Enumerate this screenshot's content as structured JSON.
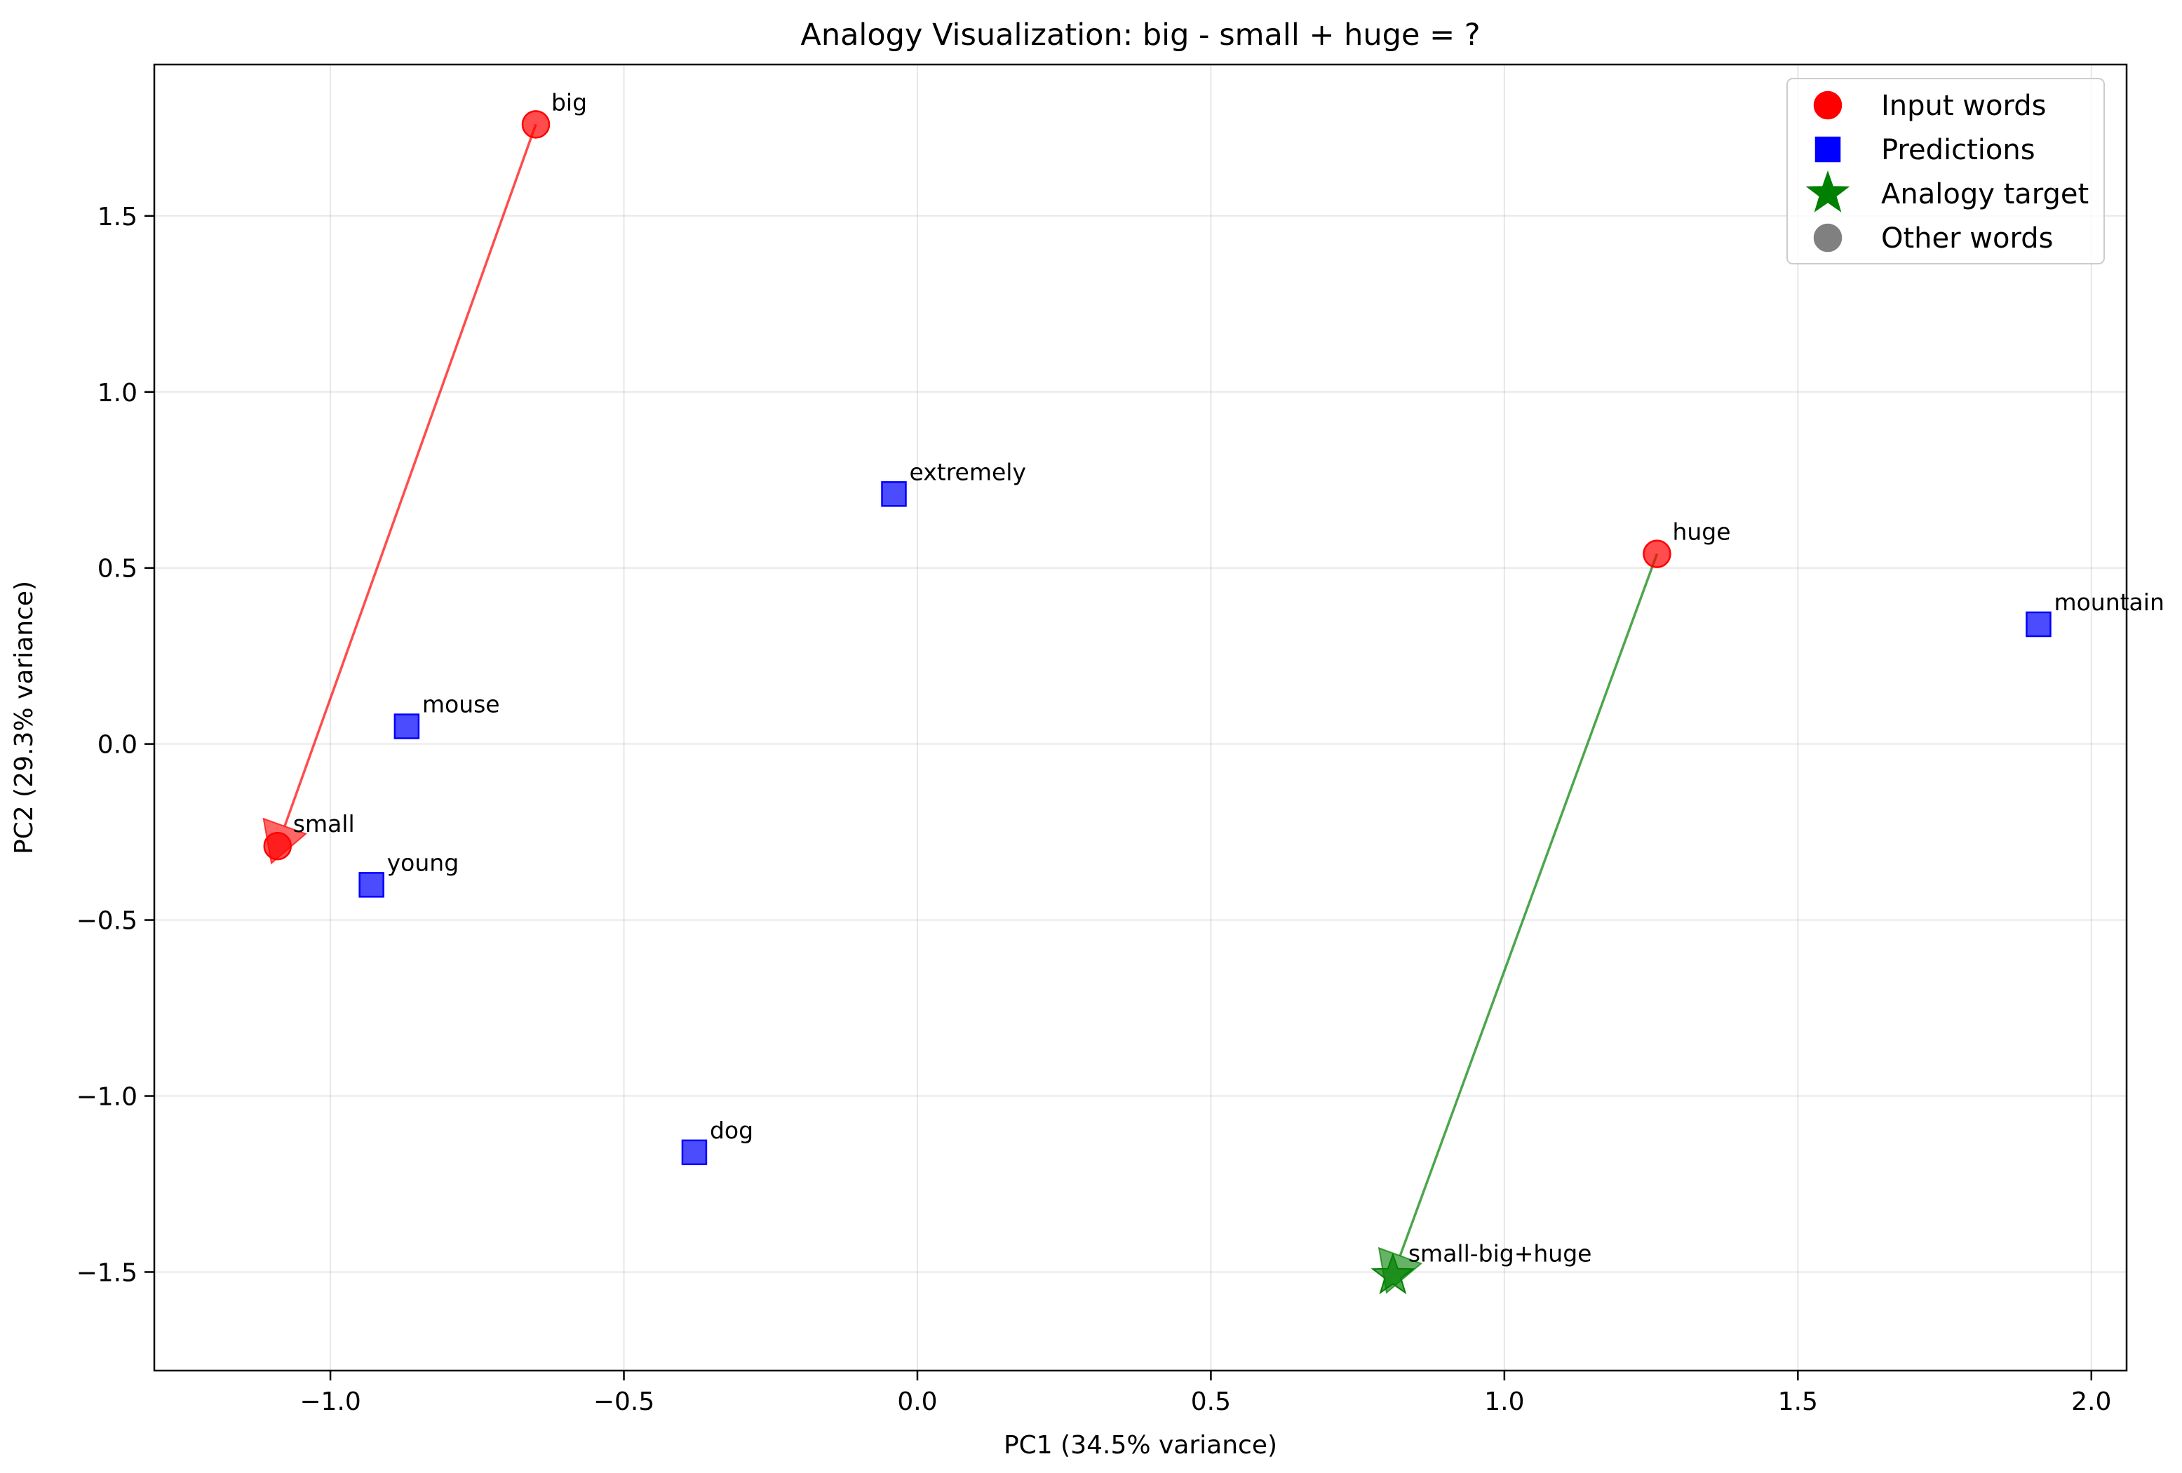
{
  "chart_data": {
    "type": "scatter",
    "title": "Analogy Visualization: big - small + huge = ?",
    "xlabel": "PC1 (34.5% variance)",
    "ylabel": "PC2 (29.3% variance)",
    "xlim": [
      -1.3,
      2.06
    ],
    "ylim": [
      -1.78,
      1.93
    ],
    "xticks": [
      -1.0,
      -0.5,
      0.0,
      0.5,
      1.0,
      1.5,
      2.0
    ],
    "xtick_labels": [
      "−1.0",
      "−0.5",
      "0.0",
      "0.5",
      "1.0",
      "1.5",
      "2.0"
    ],
    "yticks": [
      -1.5,
      -1.0,
      -0.5,
      0.0,
      0.5,
      1.0,
      1.5
    ],
    "ytick_labels": [
      "−1.5",
      "−1.0",
      "−0.5",
      "0.0",
      "0.5",
      "1.0",
      "1.5"
    ],
    "grid": true,
    "legend_position": "top-right",
    "series": [
      {
        "name": "Input words",
        "marker": "circle",
        "color": "#ff0000",
        "points": [
          {
            "label": "big",
            "x": -0.65,
            "y": 1.76
          },
          {
            "label": "small",
            "x": -1.09,
            "y": -0.29
          },
          {
            "label": "huge",
            "x": 1.26,
            "y": 0.54
          }
        ]
      },
      {
        "name": "Predictions",
        "marker": "square",
        "color": "#0000ff",
        "points": [
          {
            "label": "extremely",
            "x": -0.04,
            "y": 0.71
          },
          {
            "label": "mouse",
            "x": -0.87,
            "y": 0.05
          },
          {
            "label": "young",
            "x": -0.93,
            "y": -0.4
          },
          {
            "label": "dog",
            "x": -0.38,
            "y": -1.16
          },
          {
            "label": "mountain",
            "x": 1.91,
            "y": 0.34
          }
        ]
      },
      {
        "name": "Analogy target",
        "marker": "star",
        "color": "#008000",
        "points": [
          {
            "label": "small-big+huge",
            "x": 0.81,
            "y": -1.51
          }
        ]
      },
      {
        "name": "Other words",
        "marker": "circle",
        "color": "#808080",
        "points": []
      }
    ],
    "arrows": [
      {
        "from": {
          "x": -0.65,
          "y": 1.76
        },
        "to": {
          "x": -1.09,
          "y": -0.29
        },
        "color": "#ff0000"
      },
      {
        "from": {
          "x": 1.26,
          "y": 0.54
        },
        "to": {
          "x": 0.81,
          "y": -1.51
        },
        "color": "#008000"
      }
    ]
  }
}
